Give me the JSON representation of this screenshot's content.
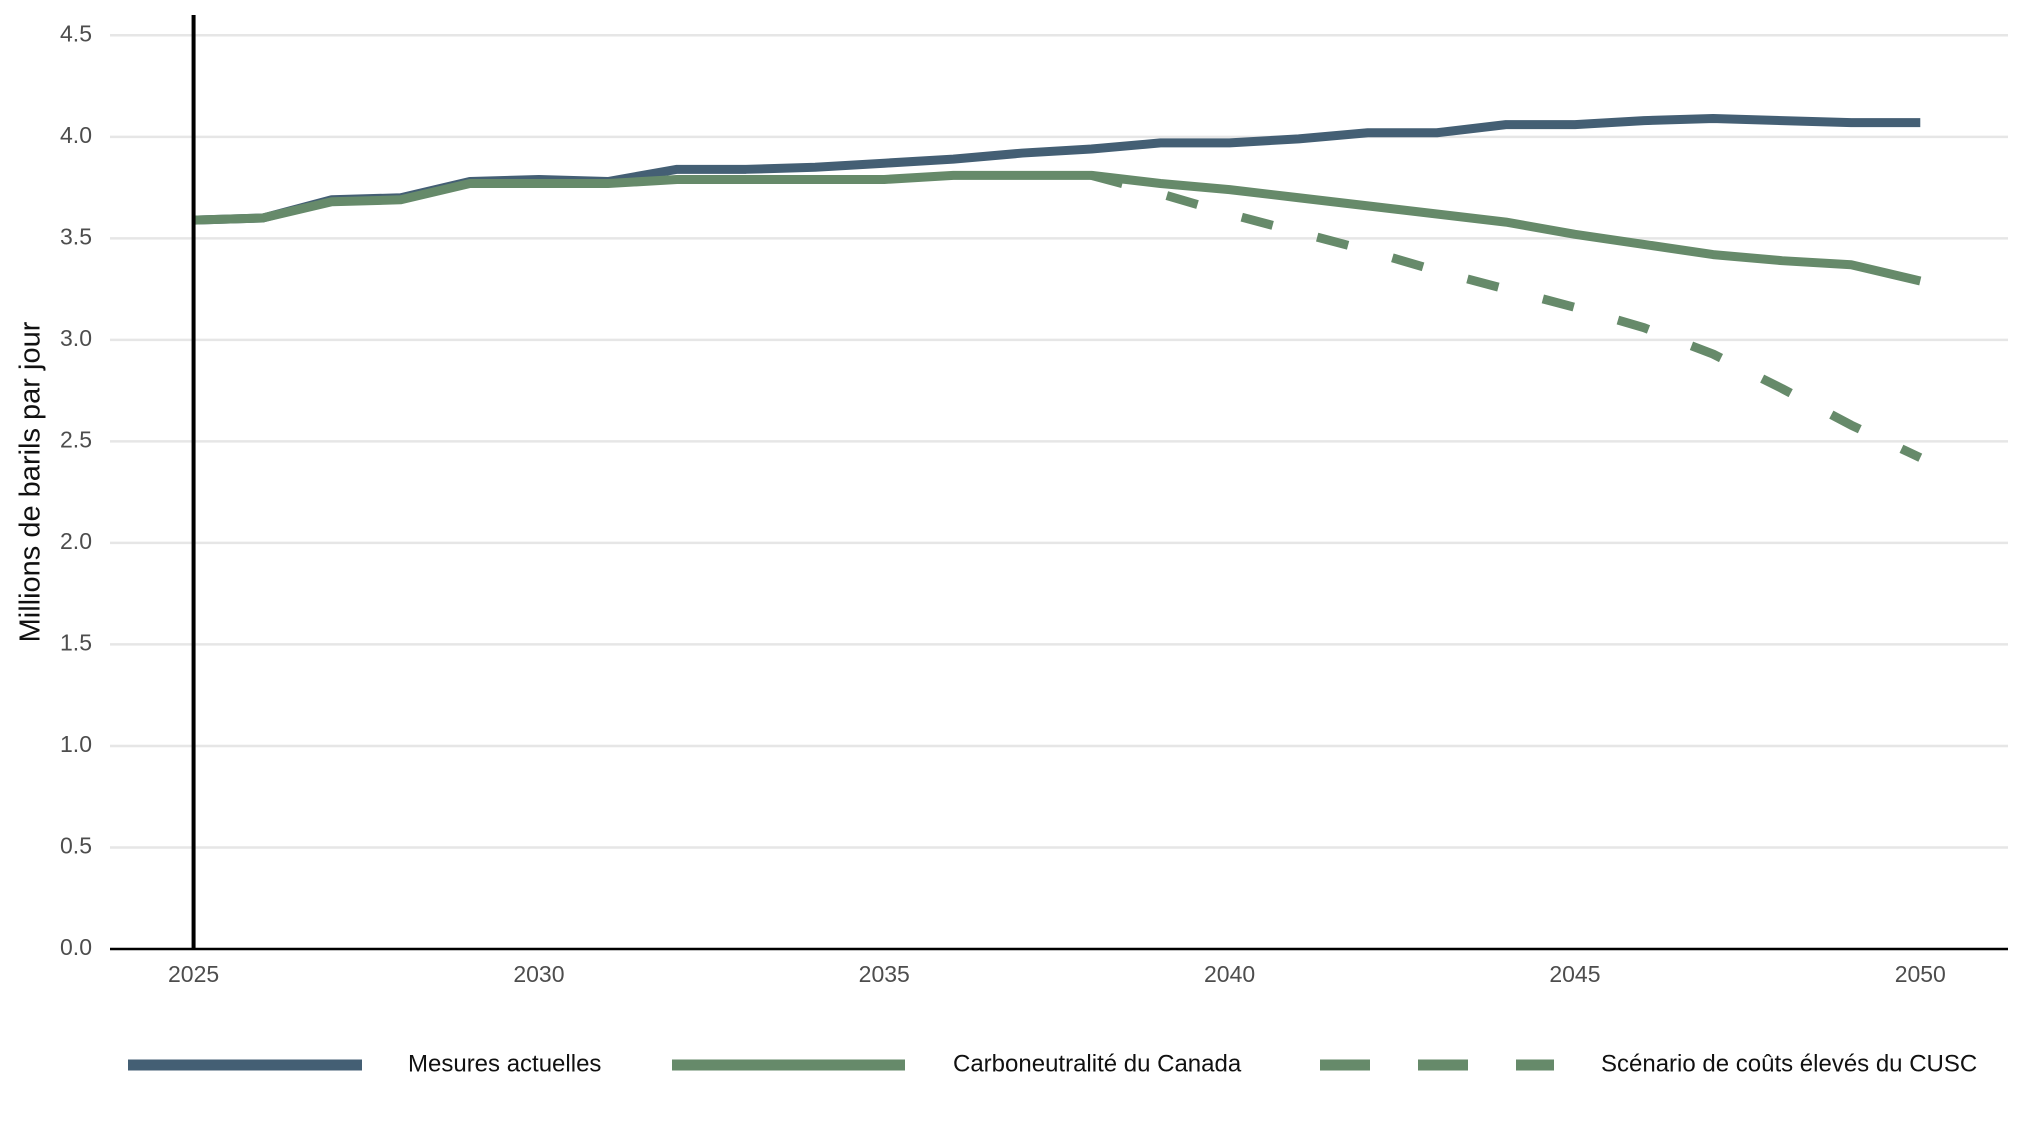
{
  "chart_data": {
    "type": "line",
    "y_label": "Millions de barils par jour",
    "x": [
      2025,
      2026,
      2027,
      2028,
      2029,
      2030,
      2031,
      2032,
      2033,
      2034,
      2035,
      2036,
      2037,
      2038,
      2039,
      2040,
      2041,
      2042,
      2043,
      2044,
      2045,
      2046,
      2047,
      2048,
      2049,
      2050
    ],
    "series": [
      {
        "name": "Mesures actuelles",
        "color": "#445f74",
        "dash": "solid",
        "values": [
          3.59,
          3.6,
          3.69,
          3.7,
          3.78,
          3.79,
          3.78,
          3.84,
          3.84,
          3.85,
          3.87,
          3.89,
          3.92,
          3.94,
          3.97,
          3.97,
          3.99,
          4.02,
          4.02,
          4.06,
          4.06,
          4.08,
          4.09,
          4.08,
          4.07,
          4.07
        ]
      },
      {
        "name": "Carboneutralité du Canada",
        "color": "#668a6a",
        "dash": "solid",
        "values": [
          3.59,
          3.6,
          3.68,
          3.69,
          3.77,
          3.77,
          3.77,
          3.79,
          3.79,
          3.79,
          3.79,
          3.81,
          3.81,
          3.81,
          3.77,
          3.74,
          3.7,
          3.66,
          3.62,
          3.58,
          3.52,
          3.47,
          3.42,
          3.39,
          3.37,
          3.29
        ]
      },
      {
        "name": "Scénario de coûts élevés du CUSC",
        "color": "#668a6a",
        "dash": "dashed",
        "values": [
          null,
          null,
          null,
          null,
          null,
          null,
          null,
          null,
          null,
          null,
          null,
          null,
          null,
          3.81,
          3.72,
          3.62,
          3.53,
          3.44,
          3.34,
          3.25,
          3.16,
          3.06,
          2.93,
          2.76,
          2.58,
          2.42
        ]
      }
    ],
    "xlim": [
      2023.79,
      2051.27
    ],
    "xticks": [
      2025,
      2030,
      2035,
      2040,
      2045,
      2050
    ],
    "ylim": [
      0,
      4.6
    ],
    "yticks": [
      {
        "value": 0,
        "label": "0.0"
      },
      {
        "value": 0.5,
        "label": "0.5"
      },
      {
        "value": 1,
        "label": "1.0"
      },
      {
        "value": 1.5,
        "label": "1.5"
      },
      {
        "value": 2,
        "label": "2.0"
      },
      {
        "value": 2.5,
        "label": "2.5"
      },
      {
        "value": 3,
        "label": "3.0"
      },
      {
        "value": 3.5,
        "label": "3.5"
      },
      {
        "value": 4,
        "label": "4.0"
      },
      {
        "value": 4.5,
        "label": "4.5"
      }
    ],
    "reference_line_x": 2025,
    "grid": true,
    "legend": "bottom"
  }
}
